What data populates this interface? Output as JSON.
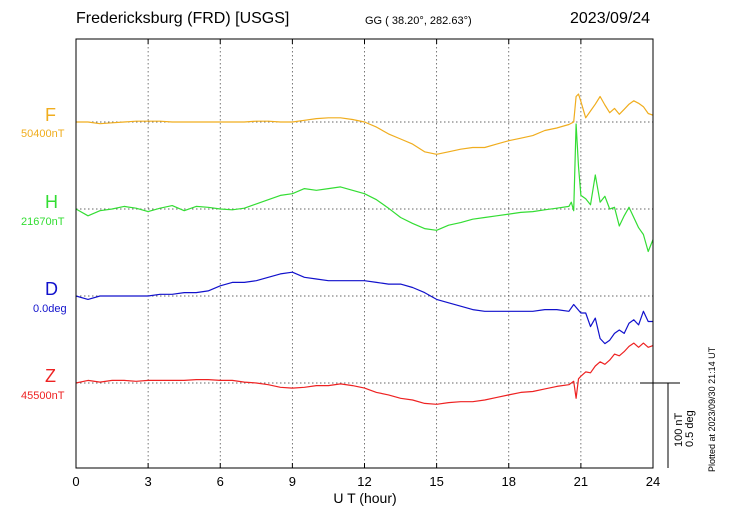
{
  "header": {
    "station": "Fredericksburg (FRD)  [USGS]",
    "coords": "GG ( 38.20°, 282.63°)",
    "date": "2023/09/24"
  },
  "side": {
    "plotted": "Plotted at 2023/09/30 21:14 UT",
    "scale_nt": "100 nT",
    "scale_deg": "0.5 deg"
  },
  "chart_data": {
    "type": "line",
    "title": "Fredericksburg (FRD)  [USGS]",
    "xlabel": "U T (hour)",
    "xlim": [
      0,
      24
    ],
    "xticks": [
      "0",
      "3",
      "6",
      "9",
      "12",
      "15",
      "18",
      "21",
      "24"
    ],
    "grid": true,
    "scale_bar": {
      "nT": 100,
      "deg": 0.5
    },
    "series": [
      {
        "name": "F",
        "baseline_label": "50400nT",
        "color": "#f0ad1e",
        "x": [
          0,
          0.5,
          1,
          1.5,
          2,
          2.5,
          3,
          3.5,
          4,
          4.5,
          5,
          5.5,
          6,
          6.5,
          7,
          7.5,
          8,
          8.5,
          9,
          9.5,
          10,
          10.5,
          11,
          11.5,
          12,
          12.5,
          13,
          13.5,
          14,
          14.5,
          15,
          15.5,
          16,
          16.5,
          17,
          17.5,
          18,
          18.5,
          19,
          19.5,
          20,
          20.5,
          20.7,
          20.8,
          20.9,
          21,
          21.2,
          21.4,
          21.6,
          21.8,
          22,
          22.2,
          22.4,
          22.6,
          22.8,
          23,
          23.2,
          23.4,
          23.6,
          23.8,
          24
        ],
        "y": [
          50400,
          50400,
          50398,
          50399,
          50400,
          50401,
          50401,
          50401,
          50400,
          50400,
          50400,
          50400,
          50400,
          50400,
          50400,
          50401,
          50401,
          50400,
          50400,
          50402,
          50404,
          50405,
          50405,
          50403,
          50400,
          50394,
          50386,
          50380,
          50374,
          50365,
          50362,
          50365,
          50368,
          50370,
          50370,
          50374,
          50378,
          50381,
          50384,
          50390,
          50393,
          50397,
          50400,
          50430,
          50433,
          50424,
          50405,
          50413,
          50421,
          50430,
          50420,
          50411,
          50416,
          50409,
          50415,
          50421,
          50425,
          50422,
          50418,
          50410,
          50408
        ]
      },
      {
        "name": "H",
        "baseline_label": "21670nT",
        "color": "#33dd33",
        "x": [
          0,
          0.5,
          1,
          1.5,
          2,
          2.5,
          3,
          3.5,
          4,
          4.5,
          5,
          5.5,
          6,
          6.5,
          7,
          7.5,
          8,
          8.5,
          9,
          9.5,
          10,
          10.5,
          11,
          11.5,
          12,
          12.5,
          13,
          13.5,
          14,
          14.5,
          15,
          15.5,
          16,
          16.5,
          17,
          17.5,
          18,
          18.5,
          19,
          19.5,
          20,
          20.5,
          20.6,
          20.7,
          20.8,
          20.9,
          21,
          21.2,
          21.4,
          21.6,
          21.8,
          22,
          22.2,
          22.4,
          22.6,
          22.8,
          23,
          23.2,
          23.4,
          23.6,
          23.8,
          24
        ],
        "y": [
          21670,
          21662,
          21668,
          21670,
          21673,
          21671,
          21667,
          21671,
          21674,
          21668,
          21673,
          21672,
          21670,
          21669,
          21671,
          21676,
          21681,
          21686,
          21688,
          21694,
          21692,
          21694,
          21696,
          21692,
          21688,
          21681,
          21671,
          21660,
          21653,
          21647,
          21645,
          21651,
          21654,
          21658,
          21660,
          21662,
          21664,
          21666,
          21667,
          21669,
          21671,
          21673,
          21678,
          21668,
          21770,
          21720,
          21686,
          21682,
          21675,
          21710,
          21678,
          21685,
          21670,
          21672,
          21650,
          21662,
          21672,
          21660,
          21648,
          21640,
          21620,
          21634
        ]
      },
      {
        "name": "D",
        "baseline_label": "0.0deg",
        "color": "#1111cc",
        "x": [
          0,
          0.5,
          1,
          1.5,
          2,
          2.5,
          3,
          3.5,
          4,
          4.5,
          5,
          5.5,
          6,
          6.5,
          7,
          7.5,
          8,
          8.5,
          9,
          9.5,
          10,
          10.5,
          11,
          11.5,
          12,
          12.5,
          13,
          13.5,
          14,
          14.5,
          15,
          15.5,
          16,
          16.5,
          17,
          17.5,
          18,
          18.5,
          19,
          19.5,
          20,
          20.5,
          20.7,
          21,
          21.2,
          21.4,
          21.6,
          21.8,
          22,
          22.2,
          22.4,
          22.6,
          22.8,
          23,
          23.2,
          23.4,
          23.6,
          23.8,
          24
        ],
        "y": [
          0,
          -0.02,
          0,
          0,
          0,
          0,
          0,
          0.01,
          0.01,
          0.02,
          0.02,
          0.03,
          0.06,
          0.08,
          0.08,
          0.09,
          0.11,
          0.13,
          0.14,
          0.11,
          0.1,
          0.09,
          0.09,
          0.09,
          0.09,
          0.08,
          0.07,
          0.07,
          0.05,
          0.02,
          -0.02,
          -0.04,
          -0.06,
          -0.08,
          -0.09,
          -0.09,
          -0.09,
          -0.09,
          -0.09,
          -0.08,
          -0.08,
          -0.09,
          -0.05,
          -0.1,
          -0.1,
          -0.18,
          -0.13,
          -0.25,
          -0.28,
          -0.26,
          -0.22,
          -0.2,
          -0.22,
          -0.16,
          -0.14,
          -0.17,
          -0.09,
          -0.15,
          -0.15
        ]
      },
      {
        "name": "Z",
        "baseline_label": "45500nT",
        "color": "#ee2222",
        "x": [
          0,
          0.5,
          1,
          1.5,
          2,
          2.5,
          3,
          3.5,
          4,
          4.5,
          5,
          5.5,
          6,
          6.5,
          7,
          7.5,
          8,
          8.5,
          9,
          9.5,
          10,
          10.5,
          11,
          11.5,
          12,
          12.5,
          13,
          13.5,
          14,
          14.5,
          15,
          15.5,
          16,
          16.5,
          17,
          17.5,
          18,
          18.5,
          19,
          19.5,
          20,
          20.5,
          20.7,
          20.8,
          20.9,
          21,
          21.2,
          21.4,
          21.6,
          21.8,
          22,
          22.2,
          22.4,
          22.6,
          22.8,
          23,
          23.2,
          23.4,
          23.6,
          23.8,
          24
        ],
        "y": [
          45500,
          45503,
          45501,
          45503,
          45503,
          45502,
          45503,
          45503,
          45503,
          45503,
          45504,
          45504,
          45503,
          45503,
          45501,
          45500,
          45498,
          45495,
          45494,
          45495,
          45497,
          45497,
          45499,
          45497,
          45494,
          45489,
          45486,
          45482,
          45480,
          45476,
          45475,
          45477,
          45478,
          45478,
          45480,
          45483,
          45486,
          45489,
          45490,
          45493,
          45496,
          45498,
          45502,
          45482,
          45505,
          45508,
          45513,
          45512,
          45520,
          45525,
          45522,
          45527,
          45534,
          45532,
          45537,
          45543,
          45547,
          45542,
          45547,
          45542,
          45544
        ]
      }
    ]
  }
}
